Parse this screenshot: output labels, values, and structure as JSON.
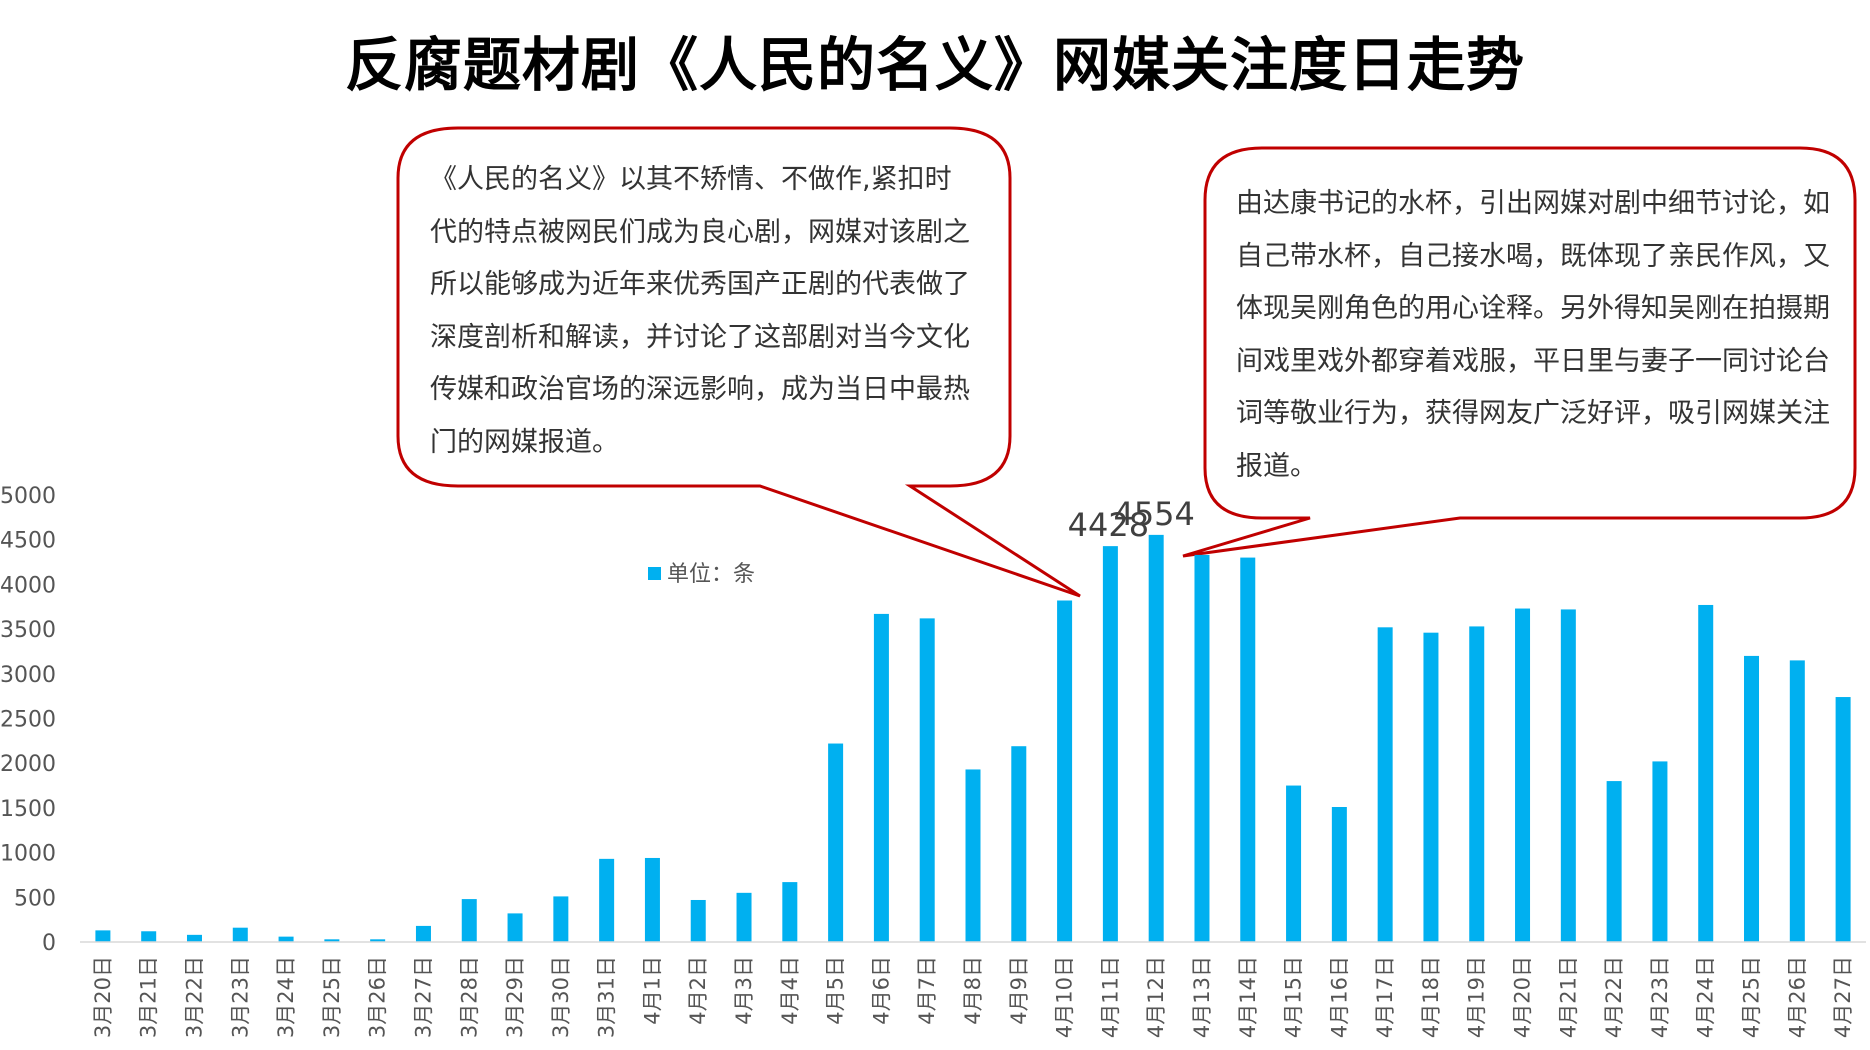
{
  "title": "反腐题材剧《人民的名义》网媒关注度日走势",
  "callouts": {
    "left": "《人民的名义》以其不矫情、不做作,紧扣时代的特点被网民们成为良心剧，网媒对该剧之所以能够成为近年来优秀国产正剧的代表做了深度剖析和解读，并讨论了这部剧对当今文化传媒和政治官场的深远影响，成为当日中最热门的网媒报道。",
    "right": "由达康书记的水杯，引出网媒对剧中细节讨论，如自己带水杯，自己接水喝，既体现了亲民作风，又体现吴刚角色的用心诠释。另外得知吴刚在拍摄期间戏里戏外都穿着戏服，平日里与妻子一同讨论台词等敬业行为，获得网友广泛好评，吸引网媒关注报道。",
    "border_color": "#c00000"
  },
  "chart_data": {
    "type": "bar",
    "categories": [
      "3月20日",
      "3月21日",
      "3月22日",
      "3月23日",
      "3月24日",
      "3月25日",
      "3月26日",
      "3月27日",
      "3月28日",
      "3月29日",
      "3月30日",
      "3月31日",
      "4月1日",
      "4月2日",
      "4月3日",
      "4月4日",
      "4月5日",
      "4月6日",
      "4月7日",
      "4月8日",
      "4月9日",
      "4月10日",
      "4月11日",
      "4月12日",
      "4月13日",
      "4月14日",
      "4月15日",
      "4月16日",
      "4月17日",
      "4月18日",
      "4月19日",
      "4月20日",
      "4月21日",
      "4月22日",
      "4月23日",
      "4月24日",
      "4月25日",
      "4月26日",
      "4月27日"
    ],
    "series": [
      {
        "name": "单位：条",
        "values": [
          130,
          120,
          80,
          160,
          60,
          30,
          30,
          180,
          480,
          320,
          510,
          930,
          940,
          470,
          550,
          670,
          2220,
          3670,
          3620,
          1930,
          2190,
          3820,
          4428,
          4554,
          4330,
          4300,
          1750,
          1510,
          3520,
          3460,
          3530,
          3730,
          3720,
          1800,
          2020,
          3770,
          3200,
          3150,
          2740
        ],
        "color": "#00b0f0"
      }
    ],
    "data_labels": [
      {
        "category": "4月11日",
        "text": "4428"
      },
      {
        "category": "4月12日",
        "text": "4554"
      }
    ],
    "yticks": [
      0,
      500,
      1000,
      1500,
      2000,
      2500,
      3000,
      3500,
      4000,
      4500,
      5000
    ],
    "ylim": [
      0,
      5000
    ],
    "legend_position": "top-left-inside"
  }
}
